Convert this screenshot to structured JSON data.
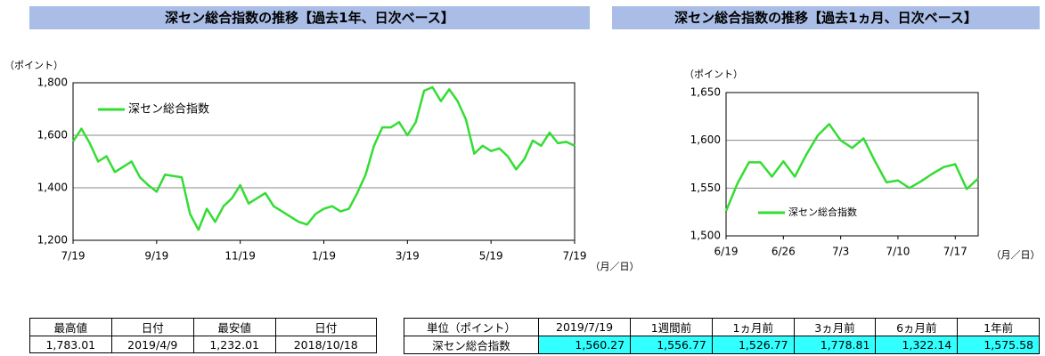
{
  "chart_data": [
    {
      "type": "line",
      "title": "深セン総合指数の推移【過去1年、日次ベース】",
      "y_label": "（ポイント）",
      "x_label": "（月／日）",
      "categories": [
        "7/19",
        null,
        null,
        null,
        null,
        null,
        null,
        null,
        null,
        null,
        "9/19",
        null,
        null,
        null,
        null,
        null,
        null,
        null,
        null,
        null,
        "11/19",
        null,
        null,
        null,
        null,
        null,
        null,
        null,
        null,
        null,
        "1/19",
        null,
        null,
        null,
        null,
        null,
        null,
        null,
        null,
        null,
        "3/19",
        null,
        null,
        null,
        null,
        null,
        null,
        null,
        null,
        null,
        "5/19",
        null,
        null,
        null,
        null,
        null,
        null,
        null,
        null,
        null,
        "7/19"
      ],
      "series": [
        {
          "name": "深セン総合指数",
          "color": "#33dd33",
          "values": [
            1576,
            1625,
            1570,
            1500,
            1520,
            1460,
            1480,
            1500,
            1440,
            1410,
            1385,
            1450,
            1445,
            1440,
            1300,
            1240,
            1320,
            1270,
            1330,
            1360,
            1410,
            1340,
            1360,
            1380,
            1330,
            1310,
            1290,
            1270,
            1260,
            1300,
            1320,
            1330,
            1310,
            1320,
            1380,
            1450,
            1560,
            1630,
            1630,
            1650,
            1600,
            1650,
            1770,
            1783,
            1730,
            1775,
            1730,
            1660,
            1530,
            1560,
            1540,
            1550,
            1520,
            1470,
            1510,
            1580,
            1560,
            1610,
            1570,
            1575,
            1560
          ]
        }
      ],
      "ylim": [
        1200,
        1800
      ],
      "yticks": [
        {
          "value": 1200,
          "label": "1,200"
        },
        {
          "value": 1400,
          "label": "1,400"
        },
        {
          "value": 1600,
          "label": "1,600"
        },
        {
          "value": 1800,
          "label": "1,800"
        }
      ],
      "grid": true,
      "legend": "top-left"
    },
    {
      "type": "line",
      "title": "深セン総合指数の推移【過去1ヵ月、日次ベース】",
      "y_label": "（ポイント）",
      "x_label": "（月／日）",
      "categories": [
        "6/19",
        null,
        null,
        null,
        null,
        "6/26",
        null,
        null,
        null,
        null,
        "7/3",
        null,
        null,
        null,
        null,
        "7/10",
        null,
        null,
        null,
        null,
        "7/17",
        null,
        null
      ],
      "series": [
        {
          "name": "深セン総合指数",
          "color": "#33dd33",
          "values": [
            1526,
            1555,
            1577,
            1577,
            1562,
            1578,
            1562,
            1585,
            1605,
            1617,
            1600,
            1592,
            1602,
            1578,
            1556,
            1558,
            1550,
            1557,
            1565,
            1572,
            1575,
            1549,
            1560
          ]
        }
      ],
      "ylim": [
        1500,
        1650
      ],
      "yticks": [
        {
          "value": 1500,
          "label": "1,500"
        },
        {
          "value": 1550,
          "label": "1,550"
        },
        {
          "value": 1600,
          "label": "1,600"
        },
        {
          "value": 1650,
          "label": "1,650"
        }
      ],
      "grid": true,
      "legend": "bottom-left"
    }
  ],
  "tables": [
    {
      "header": [
        "最高値",
        "日付",
        "最安値",
        "日付"
      ],
      "rows": [
        [
          "1,783.01",
          "2019/4/9",
          "1,232.01",
          "2018/10/18"
        ]
      ]
    },
    {
      "header": [
        "単位（ポイント）",
        "2019/7/19",
        "1週間前",
        "1ヵ月前",
        "3ヵ月前",
        "6ヵ月前",
        "1年前"
      ],
      "rows": [
        [
          "深セン総合指数",
          "1,560.27",
          "1,556.77",
          "1,526.77",
          "1,778.81",
          "1,322.14",
          "1,575.58"
        ]
      ]
    }
  ]
}
